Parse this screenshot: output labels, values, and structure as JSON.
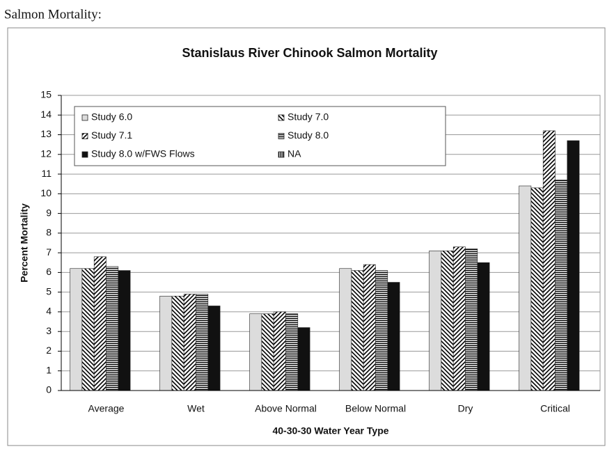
{
  "heading": "Salmon Mortality:",
  "chart_data": {
    "type": "bar",
    "title": "Stanislaus River Chinook Salmon Mortality",
    "x_label": "40-30-30 Water Year Type",
    "y_label": "Percent Mortality",
    "categories": [
      "Average",
      "Wet",
      "Above Normal",
      "Below Normal",
      "Dry",
      "Critical"
    ],
    "series": [
      {
        "name": "Study 6.0",
        "color": "#dcdcdc",
        "pattern": "solid",
        "values": [
          6.2,
          4.8,
          3.9,
          6.2,
          7.1,
          10.4
        ]
      },
      {
        "name": "Study 7.0",
        "color": "#000000",
        "pattern": "diag-back",
        "values": [
          6.2,
          4.8,
          3.9,
          6.1,
          7.1,
          10.3
        ]
      },
      {
        "name": "Study 7.1",
        "color": "#000000",
        "pattern": "diag-forward",
        "values": [
          6.8,
          4.9,
          4.0,
          6.4,
          7.3,
          13.2
        ]
      },
      {
        "name": "Study 8.0",
        "color": "#000000",
        "pattern": "horizontal",
        "values": [
          6.3,
          4.9,
          3.9,
          6.1,
          7.2,
          10.7
        ]
      },
      {
        "name": "Study 8.0 w/FWS Flows",
        "color": "#111111",
        "pattern": "solid",
        "values": [
          6.1,
          4.3,
          3.2,
          5.5,
          6.5,
          12.7
        ]
      },
      {
        "name": "NA",
        "color": "#000000",
        "pattern": "vertical",
        "values": [
          null,
          null,
          null,
          null,
          null,
          null
        ]
      }
    ],
    "ylim": [
      0,
      15
    ],
    "yticks": [
      0,
      1,
      2,
      3,
      4,
      5,
      6,
      7,
      8,
      9,
      10,
      11,
      12,
      13,
      14,
      15
    ],
    "grid": true,
    "legend": "top-left"
  }
}
